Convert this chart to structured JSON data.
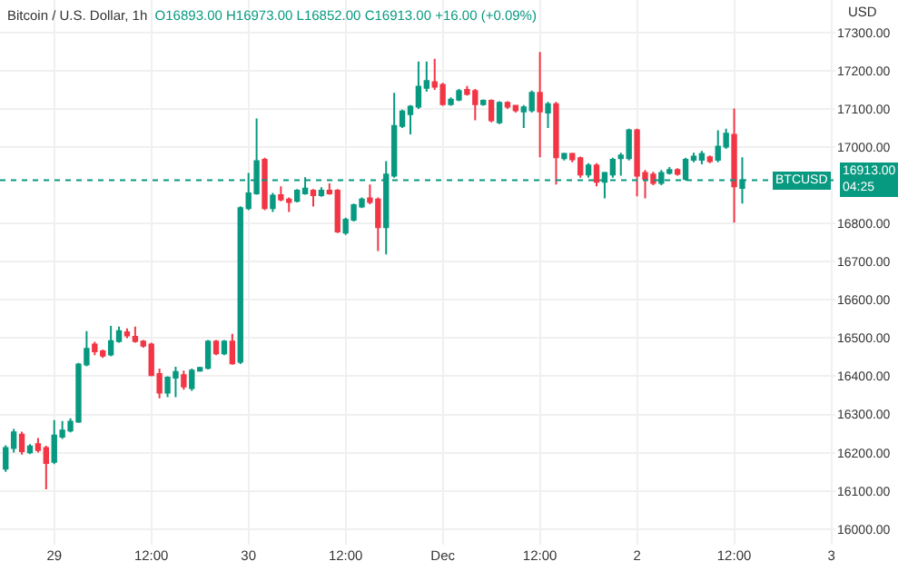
{
  "chart_data": {
    "type": "candlestick",
    "title": "Bitcoin / U.S. Dollar, 1h",
    "subtitle": "O16893.00 H16973.00 L16852.00 C16913.00 +16.00 (+0.09%)",
    "ylabel": "USD",
    "x": [
      "--11-28T18:00",
      "--11-28T19:00",
      "--11-28T20:00",
      "--11-28T21:00",
      "--11-28T22:00",
      "--11-28T23:00",
      "--11-29T00:00",
      "--11-29T01:00",
      "--11-29T02:00",
      "--11-29T03:00",
      "--11-29T04:00",
      "--11-29T05:00",
      "--11-29T06:00",
      "--11-29T07:00",
      "--11-29T08:00",
      "--11-29T09:00",
      "--11-29T10:00",
      "--11-29T11:00",
      "--11-29T12:00",
      "--11-29T13:00",
      "--11-29T14:00",
      "--11-29T15:00",
      "--11-29T16:00",
      "--11-29T17:00",
      "--11-29T18:00",
      "--11-29T19:00",
      "--11-29T20:00",
      "--11-29T21:00",
      "--11-29T22:00",
      "--11-29T23:00",
      "--11-30T00:00",
      "--11-30T01:00",
      "--11-30T02:00",
      "--11-30T03:00",
      "--11-30T04:00",
      "--11-30T05:00",
      "--11-30T06:00",
      "--11-30T07:00",
      "--11-30T08:00",
      "--11-30T09:00",
      "--11-30T10:00",
      "--11-30T11:00",
      "--11-30T12:00",
      "--11-30T13:00",
      "--11-30T14:00",
      "--11-30T15:00",
      "--11-30T16:00",
      "--11-30T17:00",
      "--11-30T18:00",
      "--11-30T19:00",
      "--11-30T20:00",
      "--11-30T21:00",
      "--11-30T22:00",
      "--11-30T23:00",
      "--12-01T00:00",
      "--12-01T01:00",
      "--12-01T02:00",
      "--12-01T03:00",
      "--12-01T04:00",
      "--12-01T05:00",
      "--12-01T06:00",
      "--12-01T07:00",
      "--12-01T08:00",
      "--12-01T09:00",
      "--12-01T10:00",
      "--12-01T11:00",
      "--12-01T12:00",
      "--12-01T13:00",
      "--12-01T14:00",
      "--12-01T15:00",
      "--12-01T16:00",
      "--12-01T17:00",
      "--12-01T18:00",
      "--12-01T19:00",
      "--12-01T20:00",
      "--12-01T21:00",
      "--12-01T22:00",
      "--12-01T23:00",
      "--12-02T00:00",
      "--12-02T01:00",
      "--12-02T02:00",
      "--12-02T03:00",
      "--12-02T04:00",
      "--12-02T05:00",
      "--12-02T06:00",
      "--12-02T07:00",
      "--12-02T08:00",
      "--12-02T09:00",
      "--12-02T10:00",
      "--12-02T11:00",
      "--12-02T12:00",
      "--12-02T13:00"
    ],
    "ohlc": [
      [
        16158,
        16219,
        16150,
        16212
      ],
      [
        16212,
        16262,
        16200,
        16253
      ],
      [
        16247,
        16255,
        16195,
        16204
      ],
      [
        16201,
        16222,
        16196,
        16216
      ],
      [
        16222,
        16238,
        16200,
        16207
      ],
      [
        16212,
        16218,
        16104,
        16173
      ],
      [
        16176,
        16285,
        16170,
        16245
      ],
      [
        16242,
        16283,
        16236,
        16258
      ],
      [
        16258,
        16290,
        16253,
        16281
      ],
      [
        16281,
        16435,
        16278,
        16431
      ],
      [
        16431,
        16518,
        16426,
        16472
      ],
      [
        16483,
        16490,
        16455,
        16465
      ],
      [
        16465,
        16470,
        16448,
        16454
      ],
      [
        16457,
        16532,
        16452,
        16492
      ],
      [
        16492,
        16530,
        16488,
        16518
      ],
      [
        16515,
        16525,
        16500,
        16507
      ],
      [
        16503,
        16530,
        16488,
        16492
      ],
      [
        16491,
        16495,
        16475,
        16480
      ],
      [
        16483,
        16488,
        16400,
        16403
      ],
      [
        16406,
        16420,
        16342,
        16357
      ],
      [
        16357,
        16400,
        16345,
        16396
      ],
      [
        16396,
        16425,
        16345,
        16411
      ],
      [
        16403,
        16415,
        16365,
        16373
      ],
      [
        16369,
        16420,
        16362,
        16415
      ],
      [
        16415,
        16425,
        16412,
        16422
      ],
      [
        16422,
        16495,
        16418,
        16491
      ],
      [
        16491,
        16495,
        16455,
        16460
      ],
      [
        16460,
        16495,
        16455,
        16491
      ],
      [
        16491,
        16511,
        16430,
        16434
      ],
      [
        16438,
        16845,
        16432,
        16840
      ],
      [
        16840,
        16932,
        16835,
        16879
      ],
      [
        16879,
        17075,
        16875,
        16963
      ],
      [
        16967,
        16972,
        16835,
        16840
      ],
      [
        16840,
        16880,
        16830,
        16873
      ],
      [
        16874,
        16897,
        16858,
        16863
      ],
      [
        16863,
        16868,
        16830,
        16856
      ],
      [
        16859,
        16890,
        16855,
        16886
      ],
      [
        16879,
        16921,
        16875,
        16891
      ],
      [
        16886,
        16890,
        16844,
        16874
      ],
      [
        16874,
        16895,
        16870,
        16886
      ],
      [
        16886,
        16905,
        16875,
        16879
      ],
      [
        16886,
        16890,
        16775,
        16779
      ],
      [
        16776,
        16815,
        16770,
        16810
      ],
      [
        16810,
        16852,
        16805,
        16848
      ],
      [
        16844,
        16868,
        16840,
        16863
      ],
      [
        16866,
        16902,
        16850,
        16856
      ],
      [
        16863,
        16868,
        16728,
        16790
      ],
      [
        16790,
        16963,
        16719,
        16928
      ],
      [
        16925,
        17142,
        16920,
        17055
      ],
      [
        17055,
        17098,
        17050,
        17093
      ],
      [
        17086,
        17110,
        17033,
        17106
      ],
      [
        17106,
        17224,
        17100,
        17158
      ],
      [
        17155,
        17224,
        17145,
        17173
      ],
      [
        17170,
        17231,
        17150,
        17158
      ],
      [
        17163,
        17168,
        17108,
        17112
      ],
      [
        17112,
        17130,
        17108,
        17124
      ],
      [
        17124,
        17152,
        17120,
        17147
      ],
      [
        17150,
        17160,
        17135,
        17139
      ],
      [
        17147,
        17152,
        17070,
        17112
      ],
      [
        17112,
        17125,
        17108,
        17121
      ],
      [
        17121,
        17125,
        17065,
        17070
      ],
      [
        17065,
        17120,
        17060,
        17116
      ],
      [
        17116,
        17120,
        17100,
        17106
      ],
      [
        17108,
        17110,
        17090,
        17096
      ],
      [
        17093,
        17110,
        17050,
        17104
      ],
      [
        17096,
        17148,
        17090,
        17142
      ],
      [
        17142,
        17249,
        16973,
        17093
      ],
      [
        17090,
        17118,
        17050,
        17112
      ],
      [
        17112,
        17118,
        16902,
        16973
      ],
      [
        16971,
        16985,
        16965,
        16982
      ],
      [
        16982,
        16985,
        16960,
        16968
      ],
      [
        16971,
        16975,
        16920,
        16928
      ],
      [
        16928,
        16958,
        16920,
        16952
      ],
      [
        16952,
        16958,
        16897,
        16909
      ],
      [
        16909,
        16935,
        16866,
        16932
      ],
      [
        16928,
        16972,
        16920,
        16967
      ],
      [
        16971,
        16985,
        16925,
        16978
      ],
      [
        16971,
        17048,
        16965,
        17044
      ],
      [
        17044,
        17048,
        16871,
        16925
      ],
      [
        16932,
        16940,
        16866,
        16917
      ],
      [
        16928,
        16935,
        16900,
        16906
      ],
      [
        16906,
        16940,
        16900,
        16932
      ],
      [
        16932,
        16948,
        16928,
        16940
      ],
      [
        16940,
        16945,
        16925,
        16930
      ],
      [
        16917,
        16972,
        16912,
        16967
      ],
      [
        16967,
        16985,
        16960,
        16975
      ],
      [
        16967,
        16990,
        16955,
        16982
      ],
      [
        16973,
        16978,
        16958,
        16963
      ],
      [
        16967,
        17044,
        16960,
        17001
      ],
      [
        17001,
        17048,
        16995,
        17035
      ],
      [
        17032,
        17101,
        16802,
        16897
      ],
      [
        16893,
        16973,
        16852,
        16913
      ]
    ],
    "colors": [
      "#089981",
      "#089981",
      "#f23645",
      "#089981",
      "#f23645",
      "#f23645",
      "#089981",
      "#089981",
      "#089981",
      "#089981",
      "#089981",
      "#f23645",
      "#f23645",
      "#089981",
      "#089981",
      "#f23645",
      "#f23645",
      "#f23645",
      "#f23645",
      "#f23645",
      "#089981",
      "#089981",
      "#f23645",
      "#089981",
      "#089981",
      "#089981",
      "#f23645",
      "#089981",
      "#f23645",
      "#089981",
      "#089981",
      "#089981",
      "#f23645",
      "#089981",
      "#f23645",
      "#f23645",
      "#089981",
      "#089981",
      "#f23645",
      "#089981",
      "#f23645",
      "#f23645",
      "#089981",
      "#089981",
      "#089981",
      "#f23645",
      "#f23645",
      "#089981",
      "#089981",
      "#089981",
      "#089981",
      "#089981",
      "#089981",
      "#f23645",
      "#f23645",
      "#089981",
      "#089981",
      "#f23645",
      "#f23645",
      "#089981",
      "#f23645",
      "#089981",
      "#f23645",
      "#f23645",
      "#089981",
      "#089981",
      "#f23645",
      "#089981",
      "#f23645",
      "#089981",
      "#f23645",
      "#f23645",
      "#089981",
      "#f23645",
      "#089981",
      "#089981",
      "#089981",
      "#089981",
      "#f23645",
      "#f23645",
      "#f23645",
      "#089981",
      "#089981",
      "#f23645",
      "#089981",
      "#089981",
      "#089981",
      "#f23645",
      "#089981",
      "#089981",
      "#f23645",
      "#089981"
    ],
    "xlim": [
      "--11-28T17:18",
      "--12-03T00:30"
    ],
    "xticks": [
      {
        "value": "--11-29",
        "label": "29"
      },
      {
        "value": "--11-29T12:00",
        "label": "12:00"
      },
      {
        "value": "--11-30",
        "label": "30"
      },
      {
        "value": "--11-30T12:00",
        "label": "12:00"
      },
      {
        "value": "--12-01",
        "label": "Dec"
      },
      {
        "value": "--12-01T12:00",
        "label": "12:00"
      },
      {
        "value": "--12-02",
        "label": "2"
      },
      {
        "value": "--12-02T12:00",
        "label": "12:00"
      },
      {
        "value": "--12-03",
        "label": "3"
      }
    ],
    "ylim": [
      15959,
      17385
    ],
    "yticks": [
      {
        "value": 16000,
        "label": "16000.00"
      },
      {
        "value": 16100,
        "label": "16100.00"
      },
      {
        "value": 16200,
        "label": "16200.00"
      },
      {
        "value": 16300,
        "label": "16300.00"
      },
      {
        "value": 16400,
        "label": "16400.00"
      },
      {
        "value": 16500,
        "label": "16500.00"
      },
      {
        "value": 16600,
        "label": "16600.00"
      },
      {
        "value": 16700,
        "label": "16700.00"
      },
      {
        "value": 16800,
        "label": "16800.00"
      },
      {
        "value": 17000,
        "label": "17000.00"
      },
      {
        "value": 17100,
        "label": "17100.00"
      },
      {
        "value": 17200,
        "label": "17200.00"
      },
      {
        "value": 17300,
        "label": "17300.00"
      }
    ],
    "grid": true,
    "ref_lines": [
      {
        "axis": "y",
        "value": 16913,
        "label": "BTCUSD",
        "color": "#089981",
        "line_style": "dotted"
      }
    ],
    "annotations": [
      {
        "text": "16913.00\n04:25",
        "y": 16913
      }
    ]
  }
}
